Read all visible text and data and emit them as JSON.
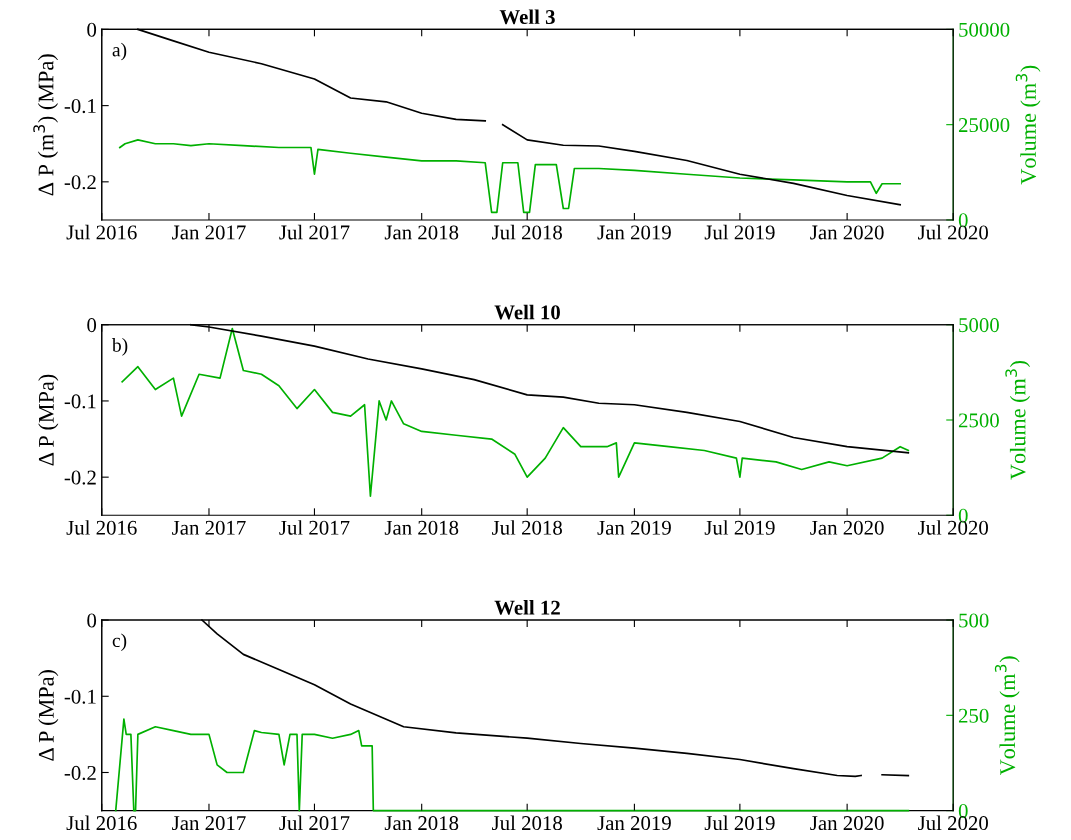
{
  "chart_data": [
    {
      "type": "line",
      "title": "Well 3",
      "ylabel": "Δ P (m$^{3}$) (MPa)",
      "y2label": "Volume (m$^{3}$)",
      "annotations": [
        "a)"
      ],
      "xlim": [
        "2016-07-01",
        "2020-07-01"
      ],
      "xticks": [
        {
          "value": "2016-07-01",
          "label": "Jul 2016"
        },
        {
          "value": "2017-01-01",
          "label": "Jan 2017"
        },
        {
          "value": "2017-07-01",
          "label": "Jul 2017"
        },
        {
          "value": "2018-01-01",
          "label": "Jan 2018"
        },
        {
          "value": "2018-07-01",
          "label": "Jul 2018"
        },
        {
          "value": "2019-01-01",
          "label": "Jan 2019"
        },
        {
          "value": "2019-07-01",
          "label": "Jul 2019"
        },
        {
          "value": "2020-01-01",
          "label": "Jan 2020"
        },
        {
          "value": "2020-07-01",
          "label": "Jul 2020"
        }
      ],
      "ylim": [
        -0.25,
        0
      ],
      "yticks": [
        -0.2,
        -0.1,
        0
      ],
      "y2lim": [
        0,
        50000
      ],
      "y2ticks": [
        0,
        25000,
        50000
      ],
      "grid": false,
      "legend": false,
      "series": [
        {
          "color": "#000000",
          "x": [
            "2016-09-01",
            "2016-11-01",
            "2017-01-01",
            "2017-04-01",
            "2017-07-01",
            "2017-09-01",
            "2017-11-01",
            "2018-01-01",
            "2018-03-01",
            "2018-04-20",
            "2018-05-01",
            "2018-05-20",
            "2018-07-01",
            "2018-09-01",
            "2018-11-01",
            "2019-01-01",
            "2019-04-01",
            "2019-07-01",
            "2019-10-01",
            "2020-01-01",
            "2020-04-01"
          ],
          "values": [
            0,
            -0.015,
            -0.03,
            -0.045,
            -0.065,
            -0.09,
            -0.095,
            -0.11,
            -0.118,
            -0.12,
            null,
            -0.125,
            -0.145,
            -0.152,
            -0.153,
            -0.16,
            -0.172,
            -0.19,
            -0.202,
            -0.218,
            -0.23
          ]
        },
        {
          "color": "#00b000",
          "axis": "y2",
          "x": [
            "2016-08-01",
            "2016-08-10",
            "2016-09-01",
            "2016-10-01",
            "2016-11-01",
            "2016-12-01",
            "2017-01-01",
            "2017-03-01",
            "2017-05-01",
            "2017-06-25",
            "2017-07-01",
            "2017-07-07",
            "2017-09-01",
            "2017-11-01",
            "2018-01-01",
            "2018-03-01",
            "2018-04-20",
            "2018-05-01",
            "2018-05-10",
            "2018-05-20",
            "2018-06-15",
            "2018-06-25",
            "2018-07-05",
            "2018-07-15",
            "2018-08-20",
            "2018-09-01",
            "2018-09-10",
            "2018-09-20",
            "2018-11-01",
            "2019-01-01",
            "2019-04-01",
            "2019-07-01",
            "2019-10-01",
            "2020-01-01",
            "2020-02-10",
            "2020-02-20",
            "2020-03-01",
            "2020-04-01"
          ],
          "values": [
            19000,
            20000,
            21000,
            20000,
            20000,
            19500,
            20000,
            19500,
            19000,
            19000,
            12000,
            18500,
            17500,
            16500,
            15500,
            15500,
            15000,
            2000,
            2000,
            15000,
            15000,
            2000,
            2000,
            14500,
            14500,
            3000,
            3000,
            13500,
            13500,
            13000,
            12000,
            11000,
            10500,
            10000,
            10000,
            7000,
            9500,
            9500
          ]
        }
      ]
    },
    {
      "type": "line",
      "title": "Well 10",
      "ylabel": "Δ P (MPa)",
      "y2label": "Volume (m$^{3}$)",
      "annotations": [
        "b)"
      ],
      "xlim": [
        "2016-07-01",
        "2020-07-01"
      ],
      "xticks": [
        {
          "value": "2016-07-01",
          "label": "Jul 2016"
        },
        {
          "value": "2017-01-01",
          "label": "Jan 2017"
        },
        {
          "value": "2017-07-01",
          "label": "Jul 2017"
        },
        {
          "value": "2018-01-01",
          "label": "Jan 2018"
        },
        {
          "value": "2018-07-01",
          "label": "Jul 2018"
        },
        {
          "value": "2019-01-01",
          "label": "Jan 2019"
        },
        {
          "value": "2019-07-01",
          "label": "Jul 2019"
        },
        {
          "value": "2020-01-01",
          "label": "Jan 2020"
        },
        {
          "value": "2020-07-01",
          "label": "Jul 2020"
        }
      ],
      "ylim": [
        -0.25,
        0
      ],
      "yticks": [
        -0.2,
        -0.1,
        0
      ],
      "y2lim": [
        0,
        5000
      ],
      "y2ticks": [
        0,
        2500,
        5000
      ],
      "grid": false,
      "legend": false,
      "series": [
        {
          "color": "#000000",
          "x": [
            "2016-12-01",
            "2017-01-01",
            "2017-04-01",
            "2017-07-01",
            "2017-10-01",
            "2018-01-01",
            "2018-04-01",
            "2018-07-01",
            "2018-09-01",
            "2018-11-01",
            "2019-01-01",
            "2019-04-01",
            "2019-07-01",
            "2019-10-01",
            "2020-01-01",
            "2020-04-15"
          ],
          "values": [
            0,
            -0.003,
            -0.015,
            -0.028,
            -0.045,
            -0.058,
            -0.072,
            -0.092,
            -0.095,
            -0.103,
            -0.105,
            -0.115,
            -0.127,
            -0.148,
            -0.16,
            -0.168
          ]
        },
        {
          "color": "#00b000",
          "axis": "y2",
          "x": [
            "2016-08-05",
            "2016-09-01",
            "2016-10-01",
            "2016-11-01",
            "2016-11-15",
            "2016-12-15",
            "2017-01-20",
            "2017-02-10",
            "2017-03-01",
            "2017-04-01",
            "2017-05-01",
            "2017-06-01",
            "2017-07-01",
            "2017-08-01",
            "2017-09-01",
            "2017-09-25",
            "2017-10-05",
            "2017-10-20",
            "2017-11-01",
            "2017-11-10",
            "2017-12-01",
            "2018-01-01",
            "2018-03-01",
            "2018-05-01",
            "2018-06-10",
            "2018-07-01",
            "2018-08-01",
            "2018-09-01",
            "2018-10-01",
            "2018-11-15",
            "2018-12-01",
            "2018-12-05",
            "2019-01-01",
            "2019-03-01",
            "2019-05-01",
            "2019-06-25",
            "2019-07-01",
            "2019-07-05",
            "2019-09-01",
            "2019-10-15",
            "2019-12-01",
            "2020-01-01",
            "2020-03-01",
            "2020-04-01",
            "2020-04-15"
          ],
          "values": [
            3500,
            3900,
            3300,
            3600,
            2600,
            3700,
            3600,
            4900,
            3800,
            3700,
            3400,
            2800,
            3300,
            2700,
            2600,
            2900,
            500,
            3000,
            2500,
            3000,
            2400,
            2200,
            2100,
            2000,
            1600,
            1000,
            1500,
            2300,
            1800,
            1800,
            1900,
            1000,
            1900,
            1800,
            1700,
            1500,
            1000,
            1500,
            1400,
            1200,
            1400,
            1300,
            1500,
            1800,
            1700
          ]
        }
      ]
    },
    {
      "type": "line",
      "title": "Well 12",
      "ylabel": "Δ P (MPa)",
      "y2label": "Volume (m$^{3}$)",
      "annotations": [
        "c)"
      ],
      "xlim": [
        "2016-07-01",
        "2020-07-01"
      ],
      "xticks": [
        {
          "value": "2016-07-01",
          "label": "Jul 2016"
        },
        {
          "value": "2017-01-01",
          "label": "Jan 2017"
        },
        {
          "value": "2017-07-01",
          "label": "Jul 2017"
        },
        {
          "value": "2018-01-01",
          "label": "Jan 2018"
        },
        {
          "value": "2018-07-01",
          "label": "Jul 2018"
        },
        {
          "value": "2019-01-01",
          "label": "Jan 2019"
        },
        {
          "value": "2019-07-01",
          "label": "Jul 2019"
        },
        {
          "value": "2020-01-01",
          "label": "Jan 2020"
        },
        {
          "value": "2020-07-01",
          "label": "Jul 2020"
        }
      ],
      "ylim": [
        -0.25,
        0
      ],
      "yticks": [
        -0.2,
        -0.1,
        0
      ],
      "y2lim": [
        0,
        500
      ],
      "y2ticks": [
        0,
        250,
        500
      ],
      "grid": false,
      "legend": false,
      "series": [
        {
          "color": "#000000",
          "x": [
            "2016-12-20",
            "2017-01-15",
            "2017-03-01",
            "2017-05-01",
            "2017-07-01",
            "2017-09-01",
            "2017-11-01",
            "2017-12-01",
            "2018-03-01",
            "2018-07-01",
            "2018-10-01",
            "2019-01-01",
            "2019-04-01",
            "2019-07-01",
            "2019-10-01",
            "2019-12-15",
            "2020-01-15",
            "2020-01-25",
            "2020-02-10",
            "2020-03-01",
            "2020-04-15"
          ],
          "values": [
            0,
            -0.018,
            -0.045,
            -0.065,
            -0.085,
            -0.11,
            -0.13,
            -0.14,
            -0.148,
            -0.155,
            -0.162,
            -0.168,
            -0.175,
            -0.183,
            -0.195,
            -0.204,
            -0.205,
            -0.204,
            null,
            -0.203,
            -0.204
          ]
        },
        {
          "color": "#00b000",
          "axis": "y2",
          "x": [
            "2016-07-25",
            "2016-08-08",
            "2016-08-12",
            "2016-08-20",
            "2016-08-25",
            "2016-08-28",
            "2016-09-01",
            "2016-10-01",
            "2016-11-01",
            "2016-12-01",
            "2017-01-01",
            "2017-01-15",
            "2017-02-01",
            "2017-03-01",
            "2017-03-20",
            "2017-04-01",
            "2017-05-01",
            "2017-05-10",
            "2017-05-20",
            "2017-06-01",
            "2017-06-05",
            "2017-06-10",
            "2017-07-01",
            "2017-08-01",
            "2017-09-01",
            "2017-09-15",
            "2017-09-20",
            "2017-10-08",
            "2017-10-10",
            "2018-06-01",
            "2019-06-01",
            "2020-04-15"
          ],
          "values": [
            0,
            240,
            200,
            200,
            0,
            0,
            200,
            220,
            210,
            200,
            200,
            120,
            100,
            100,
            210,
            205,
            200,
            120,
            200,
            200,
            0,
            200,
            200,
            190,
            200,
            210,
            170,
            170,
            0,
            0,
            0,
            0
          ]
        }
      ]
    }
  ]
}
